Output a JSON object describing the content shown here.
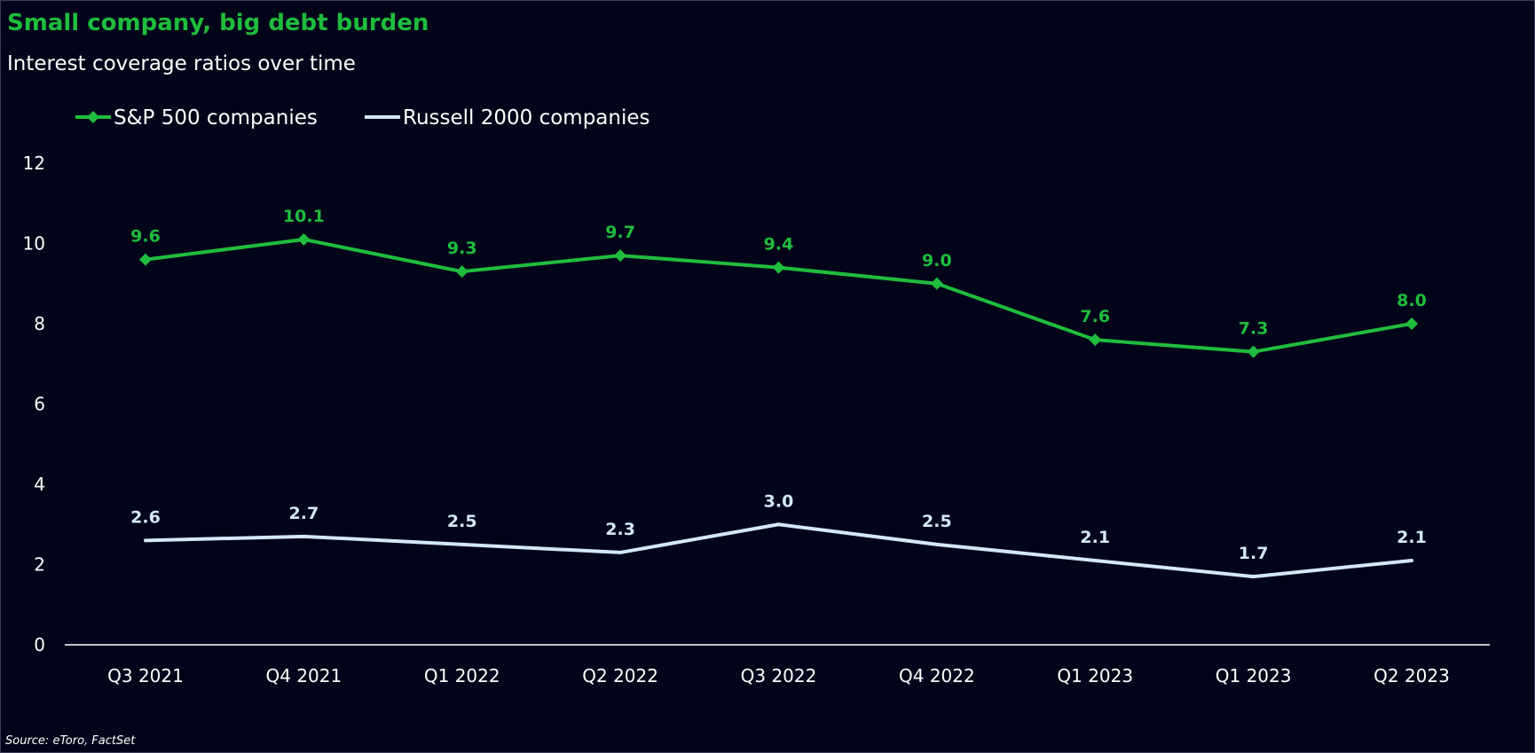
{
  "header": {
    "title": "Small company, big debt burden",
    "subtitle": "Interest coverage ratios over time"
  },
  "footer": {
    "source": "Source: eToro, FactSet"
  },
  "colors": {
    "background": "#020419",
    "sp500": "#1fbd3d",
    "russell": "#d2e8f7",
    "axis": "#ffffff",
    "title": "#1fbd3d"
  },
  "chart_data": {
    "type": "line",
    "title": "Small company, big debt burden",
    "subtitle": "Interest coverage ratios over time",
    "xlabel": "",
    "ylabel": "",
    "categories": [
      "Q3 2021",
      "Q4 2021",
      "Q1 2022",
      "Q2 2022",
      "Q3 2022",
      "Q4 2022",
      "Q1 2023",
      "Q1 2023",
      "Q2 2023"
    ],
    "ylim": [
      0,
      12
    ],
    "yticks": [
      0,
      2,
      4,
      6,
      8,
      10,
      12
    ],
    "grid": false,
    "legend": "top-left",
    "series": [
      {
        "name": "S&P 500 companies",
        "values": [
          9.6,
          10.1,
          9.3,
          9.7,
          9.4,
          9.0,
          7.6,
          7.3,
          8.0
        ],
        "labels": [
          "9.6",
          "10.1",
          "9.3",
          "9.7",
          "9.4",
          "9.0",
          "7.6",
          "7.3",
          "8.0"
        ],
        "color": "#1fbd3d",
        "marker": "diamond"
      },
      {
        "name": "Russell 2000 companies",
        "values": [
          2.6,
          2.7,
          2.5,
          2.3,
          3.0,
          2.5,
          2.1,
          1.7,
          2.1
        ],
        "labels": [
          "2.6",
          "2.7",
          "2.5",
          "2.3",
          "3.0",
          "2.5",
          "2.1",
          "1.7",
          "2.1"
        ],
        "color": "#d2e8f7",
        "marker": "none"
      }
    ]
  }
}
